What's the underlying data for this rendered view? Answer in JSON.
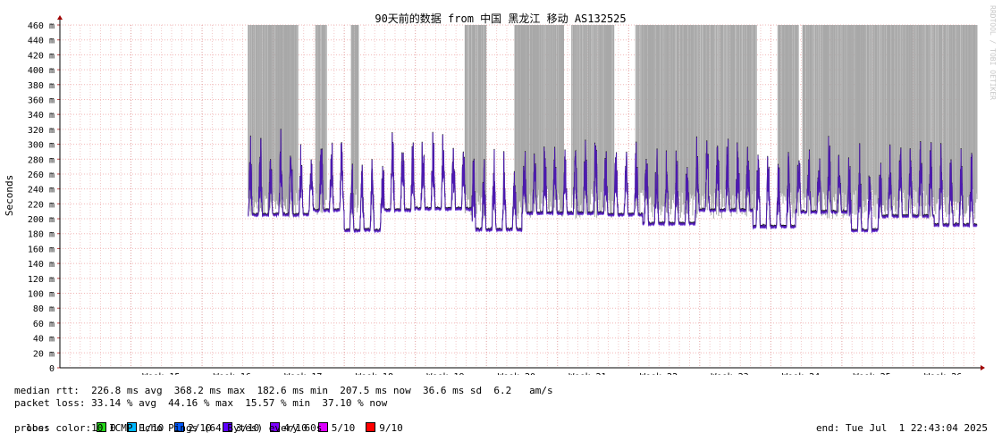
{
  "chart_data": {
    "type": "line",
    "title": "90天前的数据 from 中国 黑龙江 移动 AS132525",
    "ylabel": "Seconds",
    "watermark": "RRDTOOL / TOBI OETIKER",
    "ylim": [
      0,
      460
    ],
    "y_ticks": [
      "0",
      "20 m",
      "40 m",
      "60 m",
      "80 m",
      "100 m",
      "120 m",
      "140 m",
      "160 m",
      "180 m",
      "200 m",
      "220 m",
      "240 m",
      "260 m",
      "280 m",
      "300 m",
      "320 m",
      "340 m",
      "360 m",
      "380 m",
      "400 m",
      "420 m",
      "440 m",
      "460 m"
    ],
    "x_ticks": [
      "Week 15",
      "Week 16",
      "Week 17",
      "Week 18",
      "Week 19",
      "Week 20",
      "Week 21",
      "Week 22",
      "Week 23",
      "Week 24",
      "Week 25",
      "Week 26"
    ],
    "x_weeks": [
      15,
      16,
      17,
      18,
      19,
      20,
      21,
      22,
      23,
      24,
      25,
      26
    ],
    "x_range_weeks": [
      14.0,
      26.9
    ],
    "data_start_week": 16.65,
    "series": [
      {
        "name": "median rtt",
        "color": "#5a1ad6",
        "baseline_segments": [
          {
            "from": 16.65,
            "to": 17.5,
            "ms": 206
          },
          {
            "from": 17.5,
            "to": 18.0,
            "ms": 212
          },
          {
            "from": 18.0,
            "to": 18.55,
            "ms": 185
          },
          {
            "from": 18.55,
            "to": 19.0,
            "ms": 212
          },
          {
            "from": 19.0,
            "to": 19.8,
            "ms": 214
          },
          {
            "from": 19.8,
            "to": 20.5,
            "ms": 186
          },
          {
            "from": 20.5,
            "to": 21.7,
            "ms": 208
          },
          {
            "from": 21.7,
            "to": 22.2,
            "ms": 206
          },
          {
            "from": 22.2,
            "to": 22.95,
            "ms": 194
          },
          {
            "from": 22.95,
            "to": 23.75,
            "ms": 212
          },
          {
            "from": 23.75,
            "to": 24.35,
            "ms": 190
          },
          {
            "from": 24.35,
            "to": 25.1,
            "ms": 210
          },
          {
            "from": 25.1,
            "to": 25.55,
            "ms": 185
          },
          {
            "from": 25.55,
            "to": 26.3,
            "ms": 204
          },
          {
            "from": 26.3,
            "to": 26.9,
            "ms": 192
          }
        ],
        "peak_ms": 368
      }
    ],
    "loss_spike_color": "#a8a8a8",
    "loss_spike_regions": [
      [
        16.65,
        17.35
      ],
      [
        17.6,
        17.75
      ],
      [
        18.1,
        18.2
      ],
      [
        19.7,
        20.0
      ],
      [
        20.4,
        21.1
      ],
      [
        21.2,
        21.8
      ],
      [
        22.1,
        23.8
      ],
      [
        24.1,
        24.4
      ],
      [
        24.45,
        26.9
      ]
    ]
  },
  "stats": {
    "median_rtt": "median rtt:  226.8 ms avg  368.2 ms max  182.6 ms min  207.5 ms now  36.6 ms sd  6.2   am/s",
    "packet_loss": "packet loss: 33.14 % avg  44.16 % max  15.57 % min  37.10 % now",
    "loss_color_label": "loss color:",
    "loss_colors": [
      {
        "label": "0",
        "color": "#26d81a"
      },
      {
        "label": "1/10",
        "color": "#00b8ff"
      },
      {
        "label": "2/10",
        "color": "#0059ff"
      },
      {
        "label": "3/10",
        "color": "#5e00ff"
      },
      {
        "label": "4/10",
        "color": "#7e00ff"
      },
      {
        "label": "5/10",
        "color": "#dd00ff"
      },
      {
        "label": "9/10",
        "color": "#ff0000"
      }
    ],
    "probe": "probe:       10 ICMP Echo Pings (64 Bytes) every 60s",
    "end": "end: Tue Jul  1 22:43:04 2025"
  }
}
